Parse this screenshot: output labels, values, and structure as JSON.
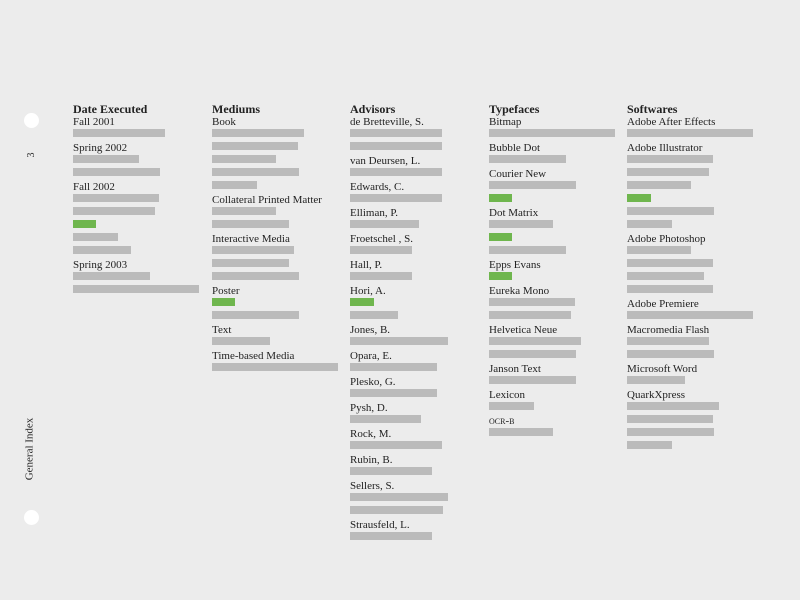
{
  "page": {
    "number": "3",
    "side_title": "General Index"
  },
  "colors": {
    "background": "#ececec",
    "bar": "#bbbbbb",
    "highlight": "#6fb64e",
    "text": "#222222"
  },
  "columns": [
    {
      "heading": "Date Executed",
      "entries": [
        {
          "label": "Fall 2001",
          "bars": [
            {
              "fraction": 0.73
            }
          ]
        },
        {
          "label": "Spring 2002",
          "bars": [
            {
              "fraction": 0.52
            },
            {
              "fraction": 0.69
            }
          ]
        },
        {
          "label": "Fall 2002",
          "bars": [
            {
              "fraction": 0.68
            },
            {
              "fraction": 0.65
            },
            {
              "fraction": 0.18,
              "highlight": true
            },
            {
              "fraction": 0.36
            },
            {
              "fraction": 0.46
            }
          ]
        },
        {
          "label": "Spring 2003",
          "bars": [
            {
              "fraction": 0.61
            },
            {
              "fraction": 1.0
            }
          ]
        }
      ]
    },
    {
      "heading": "Mediums",
      "entries": [
        {
          "label": "Book",
          "bars": [
            {
              "fraction": 0.73
            },
            {
              "fraction": 0.68
            },
            {
              "fraction": 0.51
            },
            {
              "fraction": 0.69
            },
            {
              "fraction": 0.36
            }
          ]
        },
        {
          "label": "Collateral Printed Matter",
          "bars": [
            {
              "fraction": 0.51
            },
            {
              "fraction": 0.61
            }
          ]
        },
        {
          "label": "Interactive Media",
          "bars": [
            {
              "fraction": 0.65
            },
            {
              "fraction": 0.61
            },
            {
              "fraction": 0.69
            }
          ]
        },
        {
          "label": "Poster",
          "bars": [
            {
              "fraction": 0.18,
              "highlight": true
            },
            {
              "fraction": 0.69
            }
          ]
        },
        {
          "label": "Text",
          "bars": [
            {
              "fraction": 0.46
            }
          ]
        },
        {
          "label": "Time-based Media",
          "bars": [
            {
              "fraction": 1.0
            }
          ]
        }
      ]
    },
    {
      "heading": "Advisors",
      "entries": [
        {
          "label": "de Bretteville, S.",
          "bars": [
            {
              "fraction": 0.73
            },
            {
              "fraction": 0.73
            }
          ]
        },
        {
          "label": "van Deursen, L.",
          "bars": [
            {
              "fraction": 0.73
            }
          ]
        },
        {
          "label": "Edwards, C.",
          "bars": [
            {
              "fraction": 0.73
            }
          ]
        },
        {
          "label": "Elliman, P.",
          "bars": [
            {
              "fraction": 0.55
            }
          ]
        },
        {
          "label": "Froetschel , S.",
          "bars": [
            {
              "fraction": 0.49
            }
          ]
        },
        {
          "label": "Hall, P.",
          "bars": [
            {
              "fraction": 0.49
            }
          ]
        },
        {
          "label": "Hori, A.",
          "bars": [
            {
              "fraction": 0.19,
              "highlight": true
            },
            {
              "fraction": 0.38
            }
          ]
        },
        {
          "label": "Jones, B.",
          "bars": [
            {
              "fraction": 0.78
            }
          ]
        },
        {
          "label": "Opara, E.",
          "bars": [
            {
              "fraction": 0.69
            }
          ]
        },
        {
          "label": "Plesko, G.",
          "bars": [
            {
              "fraction": 0.69
            }
          ]
        },
        {
          "label": "Pysh, D.",
          "bars": [
            {
              "fraction": 0.56
            }
          ]
        },
        {
          "label": "Rock, M.",
          "bars": [
            {
              "fraction": 0.73
            }
          ]
        },
        {
          "label": "Rubin, B.",
          "bars": [
            {
              "fraction": 0.65
            }
          ]
        },
        {
          "label": "Sellers, S.",
          "bars": [
            {
              "fraction": 0.78
            },
            {
              "fraction": 0.74
            }
          ]
        },
        {
          "label": "Strausfeld, L.",
          "bars": [
            {
              "fraction": 0.65
            }
          ]
        }
      ]
    },
    {
      "heading": "Typefaces",
      "entries": [
        {
          "label": "Bitmap",
          "bars": [
            {
              "fraction": 1.0
            }
          ]
        },
        {
          "label": "Bubble Dot",
          "bars": [
            {
              "fraction": 0.61
            }
          ]
        },
        {
          "label": "Courier New",
          "bars": [
            {
              "fraction": 0.69
            },
            {
              "fraction": 0.18,
              "highlight": true
            }
          ]
        },
        {
          "label": "Dot Matrix",
          "bars": [
            {
              "fraction": 0.51
            },
            {
              "fraction": 0.18,
              "highlight": true
            },
            {
              "fraction": 0.61
            }
          ]
        },
        {
          "label": "Epps Evans",
          "bars": [
            {
              "fraction": 0.18,
              "highlight": true
            }
          ]
        },
        {
          "label": "Eureka Mono",
          "bars": [
            {
              "fraction": 0.68
            },
            {
              "fraction": 0.65
            }
          ]
        },
        {
          "label": "Helvetica Neue",
          "bars": [
            {
              "fraction": 0.73
            },
            {
              "fraction": 0.69
            }
          ]
        },
        {
          "label": "Janson Text",
          "bars": [
            {
              "fraction": 0.69
            }
          ]
        },
        {
          "label": "Lexicon",
          "bars": [
            {
              "fraction": 0.36
            }
          ]
        },
        {
          "label": "OCR-B",
          "smallcaps": true,
          "bars": [
            {
              "fraction": 0.51
            }
          ]
        }
      ]
    },
    {
      "heading": "Softwares",
      "entries": [
        {
          "label": "Adobe After Effects",
          "bars": [
            {
              "fraction": 1.0
            }
          ]
        },
        {
          "label": "Adobe Illustrator",
          "bars": [
            {
              "fraction": 0.68
            },
            {
              "fraction": 0.65
            },
            {
              "fraction": 0.51
            },
            {
              "fraction": 0.19,
              "highlight": true
            },
            {
              "fraction": 0.69
            },
            {
              "fraction": 0.36
            }
          ]
        },
        {
          "label": "Adobe Photoshop",
          "bars": [
            {
              "fraction": 0.51
            },
            {
              "fraction": 0.68
            },
            {
              "fraction": 0.61
            },
            {
              "fraction": 0.68
            }
          ]
        },
        {
          "label": "Adobe Premiere",
          "bars": [
            {
              "fraction": 1.0
            }
          ]
        },
        {
          "label": "Macromedia Flash",
          "bars": [
            {
              "fraction": 0.65
            },
            {
              "fraction": 0.69
            }
          ]
        },
        {
          "label": "Microsoft Word",
          "bars": [
            {
              "fraction": 0.46
            }
          ]
        },
        {
          "label": "QuarkXpress",
          "bars": [
            {
              "fraction": 0.73
            },
            {
              "fraction": 0.68
            },
            {
              "fraction": 0.69
            },
            {
              "fraction": 0.36
            }
          ]
        }
      ]
    }
  ]
}
